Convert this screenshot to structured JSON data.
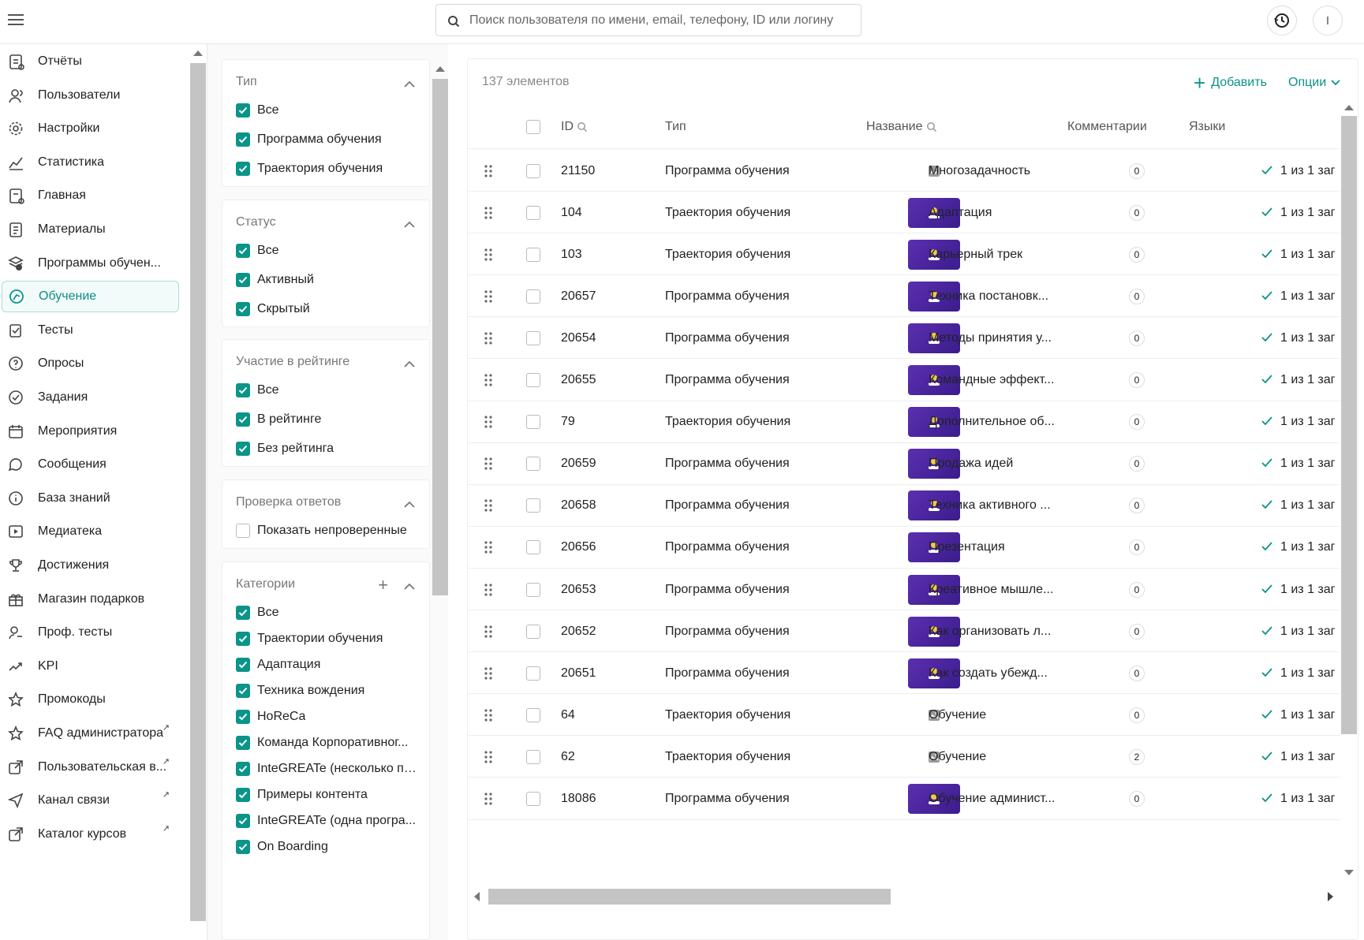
{
  "topbar": {
    "search_placeholder": "Поиск пользователя по имени, email, телефону, ID или логину",
    "avatar_letter": "I"
  },
  "sidebar": {
    "items": [
      {
        "label": "Отчёты",
        "icon": "report-icon"
      },
      {
        "label": "Пользователи",
        "icon": "users-icon"
      },
      {
        "label": "Настройки",
        "icon": "gear-icon"
      },
      {
        "label": "Статистика",
        "icon": "chart-icon"
      },
      {
        "label": "Главная",
        "icon": "home-icon"
      },
      {
        "label": "Материалы",
        "icon": "materials-icon"
      },
      {
        "label": "Программы обучен...",
        "icon": "programs-icon"
      },
      {
        "label": "Обучение",
        "icon": "learning-icon",
        "active": true
      },
      {
        "label": "Тесты",
        "icon": "tests-icon"
      },
      {
        "label": "Опросы",
        "icon": "survey-icon"
      },
      {
        "label": "Задания",
        "icon": "tasks-icon"
      },
      {
        "label": "Мероприятия",
        "icon": "calendar-icon"
      },
      {
        "label": "Сообщения",
        "icon": "messages-icon"
      },
      {
        "label": "База знаний",
        "icon": "knowledge-icon"
      },
      {
        "label": "Медиатека",
        "icon": "media-icon"
      },
      {
        "label": "Достижения",
        "icon": "trophy-icon"
      },
      {
        "label": "Магазин подарков",
        "icon": "gift-icon"
      },
      {
        "label": "Проф. тесты",
        "icon": "prof-tests-icon"
      },
      {
        "label": "KPI",
        "icon": "trend-icon"
      },
      {
        "label": "Промокоды",
        "icon": "star-icon"
      },
      {
        "label": "FAQ администратора",
        "icon": "star-icon",
        "external": true
      },
      {
        "label": "Пользовательская в...",
        "icon": "external-link-icon",
        "external": true
      },
      {
        "label": "Канал связи",
        "icon": "send-icon",
        "external": true
      },
      {
        "label": "Каталог курсов",
        "icon": "external-link-icon",
        "external": true
      }
    ]
  },
  "filters": {
    "type": {
      "title": "Тип",
      "options": [
        {
          "label": "Все",
          "checked": true
        },
        {
          "label": "Программа обучения",
          "checked": true
        },
        {
          "label": "Траектория обучения",
          "checked": true
        }
      ]
    },
    "status": {
      "title": "Статус",
      "options": [
        {
          "label": "Все",
          "checked": true
        },
        {
          "label": "Активный",
          "checked": true
        },
        {
          "label": "Скрытый",
          "checked": true
        }
      ]
    },
    "rating": {
      "title": "Участие в рейтинге",
      "options": [
        {
          "label": "Все",
          "checked": true
        },
        {
          "label": "В рейтинге",
          "checked": true
        },
        {
          "label": "Без рейтинга",
          "checked": true
        }
      ]
    },
    "answers": {
      "title": "Проверка ответов",
      "options": [
        {
          "label": "Показать непроверенные",
          "checked": false
        }
      ]
    },
    "categories": {
      "title": "Категории",
      "options": [
        {
          "label": "Все",
          "checked": true
        },
        {
          "label": "Траектории обучения",
          "checked": true
        },
        {
          "label": "Адаптация",
          "checked": true
        },
        {
          "label": "Техника вождения",
          "checked": true
        },
        {
          "label": "HoReCa",
          "checked": true
        },
        {
          "label": "Команда Корпоративног...",
          "checked": true
        },
        {
          "label": "InteGREATe (несколько пр...",
          "checked": true
        },
        {
          "label": "Примеры контента",
          "checked": true
        },
        {
          "label": "InteGREATe (одна програ...",
          "checked": true
        },
        {
          "label": "On Boarding",
          "checked": true
        }
      ]
    }
  },
  "table": {
    "count": "137 элементов",
    "add_label": "Добавить",
    "options_label": "Опции",
    "columns": {
      "id": "ID",
      "type": "Тип",
      "name": "Название",
      "comments": "Комментарии",
      "languages": "Языки"
    },
    "rows": [
      {
        "id": "21150",
        "type": "Программа обучения",
        "name": "Многозадачность",
        "thumb": "placeholder",
        "comments": "0",
        "lang": "1 из 1 заг"
      },
      {
        "id": "104",
        "type": "Траектория обучения",
        "name": "Адаптация",
        "thumb": "image",
        "comments": "0",
        "lang": "1 из 1 заг"
      },
      {
        "id": "103",
        "type": "Траектория обучения",
        "name": "Карьерный трек",
        "thumb": "image",
        "comments": "0",
        "lang": "1 из 1 заг"
      },
      {
        "id": "20657",
        "type": "Программа обучения",
        "name": "Техника постановк...",
        "thumb": "image",
        "comments": "0",
        "lang": "1 из 1 заг"
      },
      {
        "id": "20654",
        "type": "Программа обучения",
        "name": "Методы принятия у...",
        "thumb": "image",
        "comments": "0",
        "lang": "1 из 1 заг"
      },
      {
        "id": "20655",
        "type": "Программа обучения",
        "name": "Командные эффект...",
        "thumb": "image",
        "comments": "0",
        "lang": "1 из 1 заг"
      },
      {
        "id": "79",
        "type": "Траектория обучения",
        "name": "Дополнительное об...",
        "thumb": "image",
        "comments": "0",
        "lang": "1 из 1 заг"
      },
      {
        "id": "20659",
        "type": "Программа обучения",
        "name": "Продажа идей",
        "thumb": "image",
        "comments": "0",
        "lang": "1 из 1 заг"
      },
      {
        "id": "20658",
        "type": "Программа обучения",
        "name": "Техника активного ...",
        "thumb": "image",
        "comments": "0",
        "lang": "1 из 1 заг"
      },
      {
        "id": "20656",
        "type": "Программа обучения",
        "name": "Презентация",
        "thumb": "image",
        "comments": "0",
        "lang": "1 из 1 заг"
      },
      {
        "id": "20653",
        "type": "Программа обучения",
        "name": "Креативное мышле...",
        "thumb": "image",
        "comments": "0",
        "lang": "1 из 1 заг"
      },
      {
        "id": "20652",
        "type": "Программа обучения",
        "name": "Как организовать л...",
        "thumb": "image",
        "comments": "0",
        "lang": "1 из 1 заг"
      },
      {
        "id": "20651",
        "type": "Программа обучения",
        "name": "Как создать убежд...",
        "thumb": "image",
        "comments": "0",
        "lang": "1 из 1 заг"
      },
      {
        "id": "64",
        "type": "Траектория обучения",
        "name": "Обучение",
        "thumb": "placeholder",
        "comments": "0",
        "lang": "1 из 1 заг"
      },
      {
        "id": "62",
        "type": "Траектория обучения",
        "name": "Обучение",
        "thumb": "placeholder",
        "comments": "2",
        "lang": "1 из 1 заг"
      },
      {
        "id": "18086",
        "type": "Программа обучения",
        "name": "Обучение админист...",
        "thumb": "image",
        "comments": "0",
        "lang": "1 из 1 заг"
      }
    ]
  },
  "colors": {
    "accent": "#0b9488",
    "thumb": "#4b26a6"
  }
}
